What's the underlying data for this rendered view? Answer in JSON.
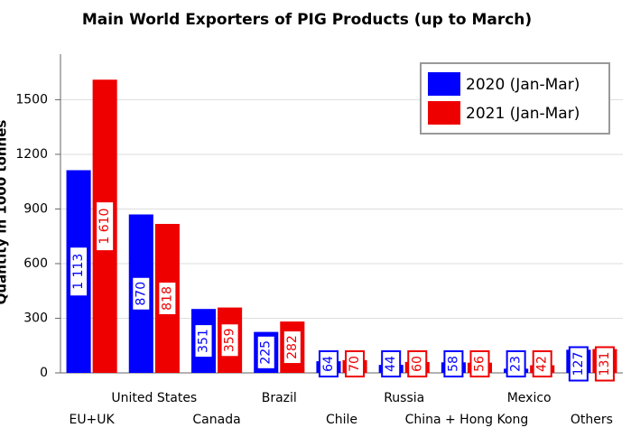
{
  "chart_data": {
    "type": "bar",
    "title": "Main World Exporters of PIG Products (up to March)",
    "y_label": "Quantity in 1000 tonnes",
    "categories": [
      "EU+UK",
      "United States",
      "Canada",
      "Brazil",
      "Chile",
      "Russia",
      "China + Hong Kong",
      "Mexico",
      "Others"
    ],
    "series": [
      {
        "name": "2020 (Jan-Mar)",
        "color": "#0000ff",
        "values": [
          1113,
          870,
          351,
          225,
          64,
          44,
          58,
          23,
          127
        ],
        "value_labels": [
          "1 113",
          "870",
          "351",
          "225",
          "64",
          "44",
          "58",
          "23",
          "127"
        ]
      },
      {
        "name": "2021 (Jan-Mar)",
        "color": "#ee0000",
        "values": [
          1610,
          818,
          359,
          282,
          70,
          60,
          56,
          42,
          131
        ],
        "value_labels": [
          "1 610",
          "818",
          "359",
          "282",
          "70",
          "60",
          "56",
          "42",
          "131"
        ]
      }
    ],
    "ylim": [
      0,
      1750
    ],
    "yticks": [
      0,
      300,
      600,
      900,
      1200,
      1500
    ],
    "grid": true,
    "legend": "top-right"
  }
}
